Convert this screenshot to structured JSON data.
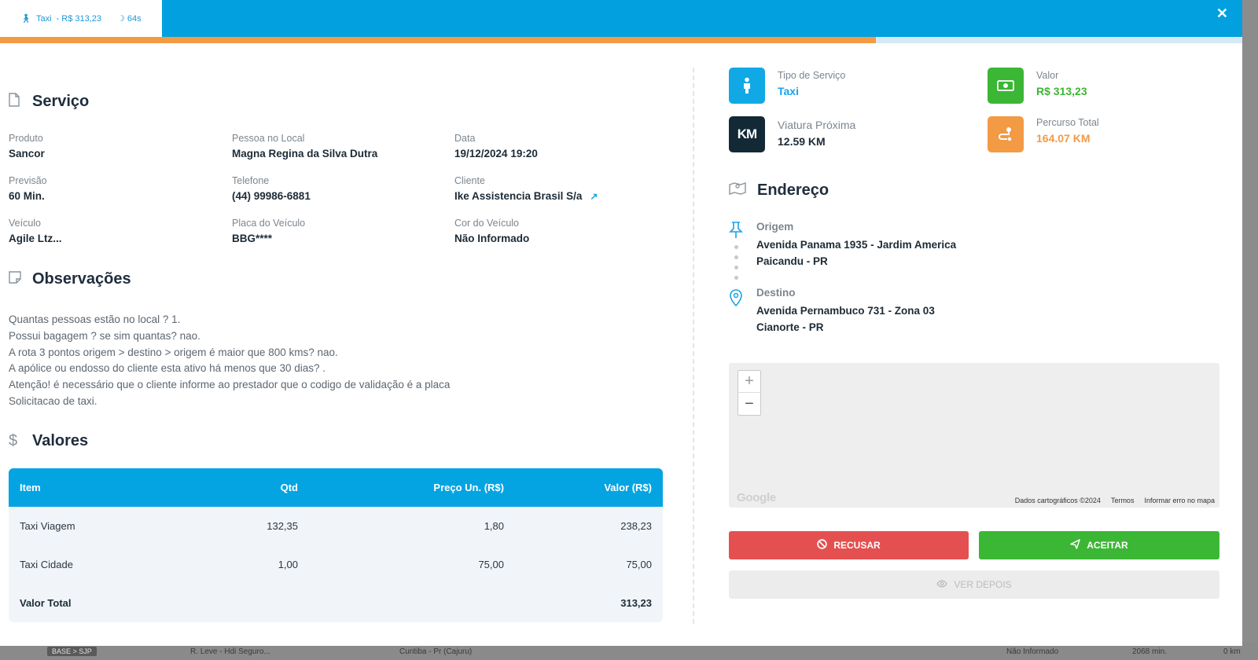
{
  "tab": {
    "icon": "person-icon",
    "label": "Taxi",
    "price": "- R$ 313,23",
    "timer": "64s"
  },
  "progress": {
    "value": 0.705
  },
  "servico": {
    "title": "Serviço",
    "fields": [
      {
        "label": "Produto",
        "value": "Sancor"
      },
      {
        "label": "Pessoa no Local",
        "value": "Magna Regina da Silva Dutra"
      },
      {
        "label": "Data",
        "value": "19/12/2024 19:20"
      },
      {
        "label": "Previsão",
        "value": "60 Min."
      },
      {
        "label": "Telefone",
        "value": "(44) 99986-6881"
      },
      {
        "label": "Cliente",
        "value": "Ike Assistencia Brasil S/a"
      },
      {
        "label": "Veículo",
        "value": "Agile Ltz..."
      },
      {
        "label": "Placa do Veículo",
        "value": "BBG****"
      },
      {
        "label": "Cor do Veículo",
        "value": "Não Informado"
      }
    ]
  },
  "observacoes": {
    "title": "Observações",
    "lines": [
      "Quantas pessoas estão no local ? 1.",
      "Possui bagagem ? se sim quantas? nao.",
      "A rota 3 pontos origem > destino > origem é maior que 800 kms? nao.",
      "A apólice ou endosso do cliente esta ativo há menos que 30 dias? .",
      "Atenção! é necessário que o cliente informe ao prestador que o codigo de validação é a placa",
      "Solicitacao de taxi."
    ]
  },
  "valores": {
    "title": "Valores",
    "headers": [
      "Item",
      "Qtd",
      "Preço Un. (R$)",
      "Valor (R$)"
    ],
    "rows": [
      [
        "Taxi Viagem",
        "132,35",
        "1,80",
        "238,23"
      ],
      [
        "Taxi Cidade",
        "1,00",
        "75,00",
        "75,00"
      ]
    ],
    "total_label": "Valor Total",
    "total_value": "313,23"
  },
  "stats": {
    "tipo": {
      "label": "Tipo de Serviço",
      "value": "Taxi",
      "color": "#1aa3e6"
    },
    "valor": {
      "label": "Valor",
      "value": "R$ 313,23",
      "color": "#3bb635"
    },
    "viatura": {
      "label": "Viatura Próxima",
      "value": "12.59 KM",
      "icon_text": "KM",
      "color": "#132a36"
    },
    "percurso": {
      "label": "Percurso Total",
      "value": "164.07 KM",
      "color": "#f39a44"
    }
  },
  "endereco": {
    "title": "Endereço",
    "origem": {
      "label": "Origem",
      "line1": "Avenida Panama 1935 - Jardim America",
      "line2": "Paicandu - PR"
    },
    "destino": {
      "label": "Destino",
      "line1": "Avenida Pernambuco 731 - Zona 03",
      "line2": "Cianorte - PR"
    }
  },
  "map": {
    "logo": "Google",
    "footer": [
      "Dados cartográficos ©2024",
      "Termos",
      "Informar erro no mapa"
    ]
  },
  "buttons": {
    "refuse": "RECUSAR",
    "accept": "ACEITAR",
    "later": "VER DEPOIS"
  },
  "background_row": {
    "badge": "BASE > SJP",
    "service": "R. Leve - Hdi Seguro...",
    "city": "Curitiba - Pr (Cajuru)",
    "color": "Não Informado",
    "time": "2068 min.",
    "distance": "0 km"
  }
}
